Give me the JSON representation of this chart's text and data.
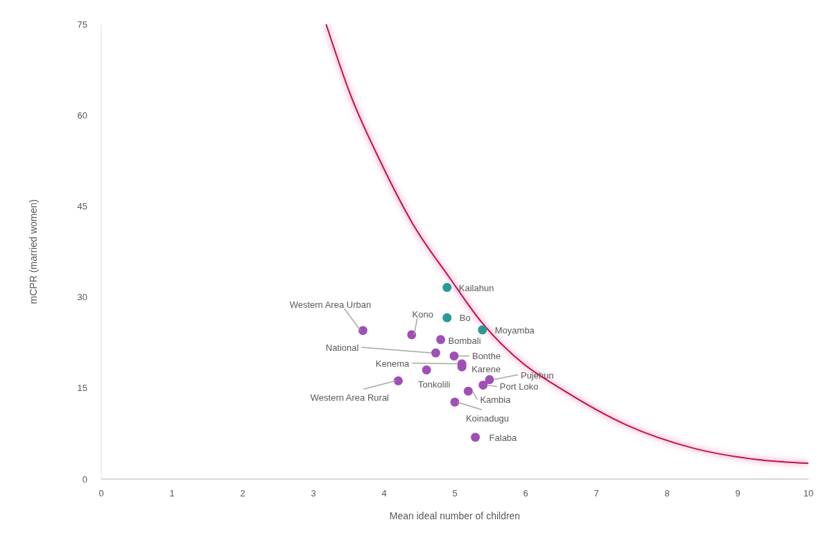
{
  "chart_data": {
    "type": "scatter",
    "xlabel": "Mean ideal number of children",
    "ylabel": "mCPR (married women)",
    "xlim": [
      0,
      10
    ],
    "xticks": [
      0,
      1,
      2,
      3,
      4,
      5,
      6,
      7,
      8,
      9,
      10
    ],
    "ylim": [
      0,
      75
    ],
    "yticks": [
      0,
      15,
      30,
      45,
      60,
      75
    ],
    "grid": false,
    "legend": false,
    "marker": "circle",
    "series": [
      {
        "name": "Kailahun",
        "color": "#2a9a98",
        "x": [
          4.89
        ],
        "values": [
          31.6
        ]
      },
      {
        "name": "Bo",
        "color": "#2a9a98",
        "x": [
          4.89
        ],
        "values": [
          26.6
        ]
      },
      {
        "name": "Moyamba",
        "color": "#2a9a98",
        "x": [
          5.39
        ],
        "values": [
          24.6
        ]
      },
      {
        "name": "Western Area Urban",
        "color": "#a04fb4",
        "x": [
          3.7
        ],
        "values": [
          24.5
        ]
      },
      {
        "name": "Kono",
        "color": "#a04fb4",
        "x": [
          4.39
        ],
        "values": [
          23.8
        ]
      },
      {
        "name": "Bombali",
        "color": "#a04fb4",
        "x": [
          4.8
        ],
        "values": [
          23.0
        ]
      },
      {
        "name": "National",
        "color": "#a04fb4",
        "x": [
          4.73
        ],
        "values": [
          20.8
        ]
      },
      {
        "name": "Bonthe",
        "color": "#a04fb4",
        "x": [
          4.99
        ],
        "values": [
          20.3
        ]
      },
      {
        "name": "Kenema",
        "color": "#a04fb4",
        "x": [
          5.1
        ],
        "values": [
          19.0
        ]
      },
      {
        "name": "Karene",
        "color": "#a04fb4",
        "x": [
          5.1
        ],
        "values": [
          18.5
        ]
      },
      {
        "name": "Tonkolili",
        "color": "#a04fb4",
        "x": [
          4.6
        ],
        "values": [
          18.0
        ]
      },
      {
        "name": "Western Area Rural",
        "color": "#a04fb4",
        "x": [
          4.2
        ],
        "values": [
          16.2
        ]
      },
      {
        "name": "Pujehun",
        "color": "#a04fb4",
        "x": [
          5.49
        ],
        "values": [
          16.4
        ]
      },
      {
        "name": "Port Loko",
        "color": "#a04fb4",
        "x": [
          5.4
        ],
        "values": [
          15.5
        ]
      },
      {
        "name": "Kambia",
        "color": "#a04fb4",
        "x": [
          5.19
        ],
        "values": [
          14.5
        ]
      },
      {
        "name": "Koinadugu",
        "color": "#a04fb4",
        "x": [
          5.0
        ],
        "values": [
          12.7
        ]
      },
      {
        "name": "Falaba",
        "color": "#a04fb4",
        "x": [
          5.29
        ],
        "values": [
          6.9
        ]
      },
      {
        "type": "line",
        "marker": "none",
        "color": "#c0104f",
        "x": [
          3.18,
          3.53,
          3.95,
          4.41,
          4.92,
          5.39,
          5.95,
          6.5,
          7.43,
          8.37,
          9.29,
          10
        ],
        "values": [
          75,
          63.2,
          52.3,
          42.0,
          33.3,
          25.7,
          19.2,
          14.9,
          8.9,
          5.1,
          3.2,
          2.6
        ]
      }
    ]
  }
}
